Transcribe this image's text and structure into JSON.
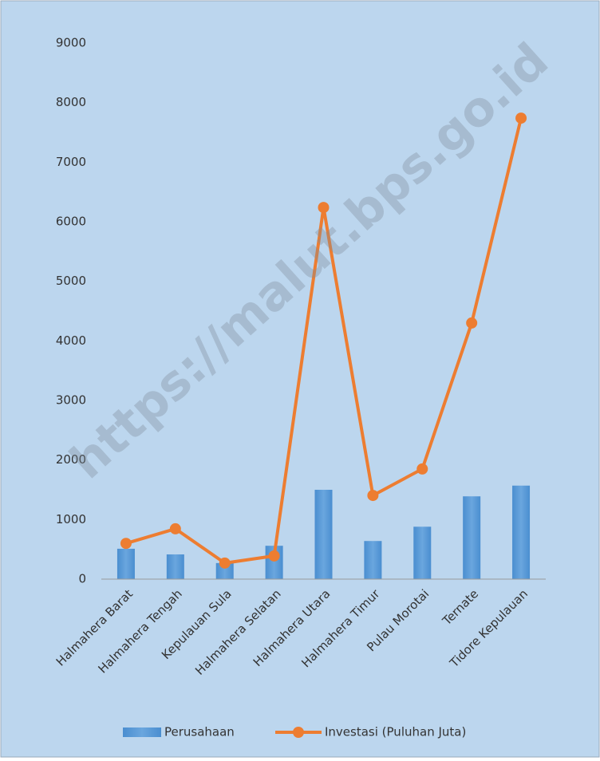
{
  "chart_data": {
    "type": "bar-line",
    "watermark": "https://malut.bps.go.id",
    "categories": [
      "Halmahera Barat",
      "Halmahera Tengah",
      "Kepulauan Sula",
      "Halmahera Selatan",
      "Halmahera Utara",
      "Halmahera Timur",
      "Pulau Morotai",
      "Ternate",
      "Tidore Kepulauan"
    ],
    "series": [
      {
        "name": "Perusahaan",
        "type": "bar",
        "color": "#5b9bd5",
        "values": [
          510,
          415,
          270,
          560,
          1500,
          640,
          880,
          1390,
          1570
        ]
      },
      {
        "name": "Investasi (Puluhan Juta)",
        "type": "line",
        "color": "#ed7d31",
        "values": [
          600,
          845,
          270,
          390,
          6240,
          1405,
          1850,
          4300,
          7740
        ]
      }
    ],
    "ylim": [
      0,
      9000
    ],
    "yticks": [
      0,
      1000,
      2000,
      3000,
      4000,
      5000,
      6000,
      7000,
      8000,
      9000
    ],
    "grid": false,
    "legend": "bottom"
  }
}
